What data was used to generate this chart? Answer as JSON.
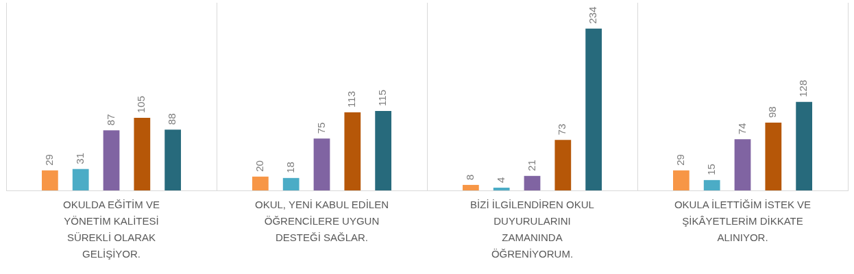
{
  "chart_data": {
    "type": "bar",
    "categories": [
      "OKULDA EĞİTİM VE YÖNETİM KALİTESİ SÜREKLİ OLARAK GELİŞİYOR.",
      "OKUL, YENİ KABUL EDİLEN ÖĞRENCİLERE UYGUN DESTEĞİ SAĞLAR.",
      "BİZİ İLGİLENDİREN OKUL DUYURULARINI ZAMANINDA ÖĞRENİYORUM.",
      "OKULA İLETTİĞİM İSTEK VE ŞİKÂYETLERİM DİKKATE ALINIYOR."
    ],
    "series": [
      {
        "color": "#f79646",
        "values": [
          29,
          20,
          8,
          29
        ]
      },
      {
        "color": "#4bacc6",
        "values": [
          31,
          18,
          4,
          15
        ]
      },
      {
        "color": "#8064a2",
        "values": [
          87,
          75,
          21,
          74
        ]
      },
      {
        "color": "#b65708",
        "values": [
          105,
          113,
          73,
          98
        ]
      },
      {
        "color": "#276a7c",
        "values": [
          88,
          115,
          234,
          128
        ]
      }
    ],
    "data_labels": true,
    "grid": "x",
    "tick_labels": "x"
  }
}
